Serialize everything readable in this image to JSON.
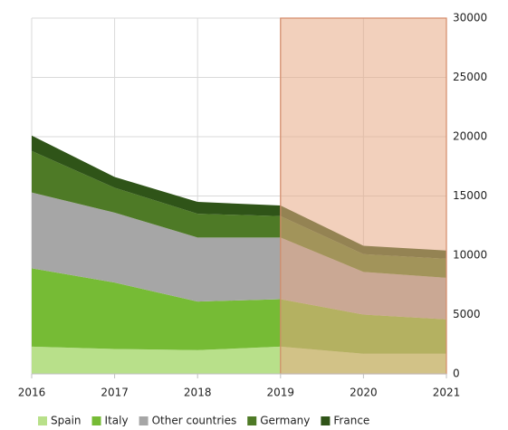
{
  "chart_data": {
    "type": "stacked_area",
    "x": [
      2016,
      2017,
      2018,
      2019,
      2020,
      2021
    ],
    "xlim": [
      2016,
      2021
    ],
    "xticks": [
      2016,
      2017,
      2018,
      2019,
      2020,
      2021
    ],
    "ylim": [
      0,
      30000
    ],
    "yticks": [
      0,
      5000,
      10000,
      15000,
      20000,
      25000,
      30000
    ],
    "grid": true,
    "legend": "bottom",
    "shaded_range": [
      2019,
      2021
    ],
    "shade_color": "#e8a985",
    "series": [
      {
        "name": "Spain",
        "color": "#b8e08a",
        "values": [
          2300,
          2100,
          2000,
          2300,
          1700,
          1700
        ]
      },
      {
        "name": "Italy",
        "color": "#76bb35",
        "values": [
          6600,
          5600,
          4100,
          4000,
          3300,
          2900
        ]
      },
      {
        "name": "Other countries",
        "color": "#a6a6a6",
        "values": [
          6400,
          5900,
          5400,
          5200,
          3600,
          3500
        ]
      },
      {
        "name": "Germany",
        "color": "#4e7a26",
        "values": [
          3500,
          2100,
          2000,
          1800,
          1500,
          1600
        ]
      },
      {
        "name": "France",
        "color": "#2f5418",
        "values": [
          1300,
          900,
          1000,
          900,
          700,
          700
        ]
      }
    ]
  }
}
